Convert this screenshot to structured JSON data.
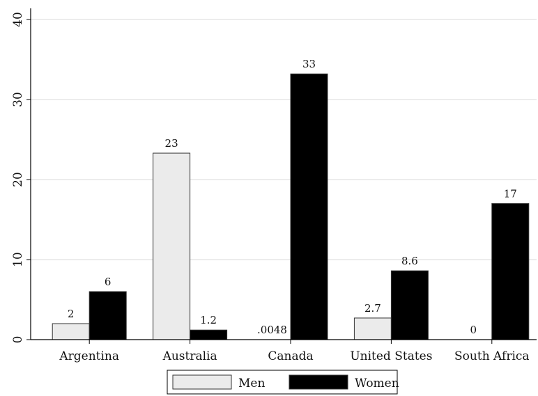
{
  "chart_data": {
    "type": "bar",
    "categories": [
      "Argentina",
      "Australia",
      "Canada",
      "United States",
      "South Africa"
    ],
    "series": [
      {
        "name": "Men",
        "color": "#ebebeb",
        "values": [
          2,
          23.3,
          0.0048,
          2.7,
          0
        ],
        "data_labels": [
          "2",
          "23",
          ".0048",
          "2.7",
          "0"
        ]
      },
      {
        "name": "Women",
        "color": "#000000",
        "values": [
          6,
          1.2,
          33.2,
          8.6,
          17
        ],
        "data_labels": [
          "6",
          "1.2",
          "33",
          "8.6",
          "17"
        ]
      }
    ],
    "yticks": [
      "0",
      "10",
      "20",
      "30",
      "40"
    ],
    "ylim": [
      0,
      40
    ],
    "grid": true,
    "legend_position": "bottom"
  }
}
